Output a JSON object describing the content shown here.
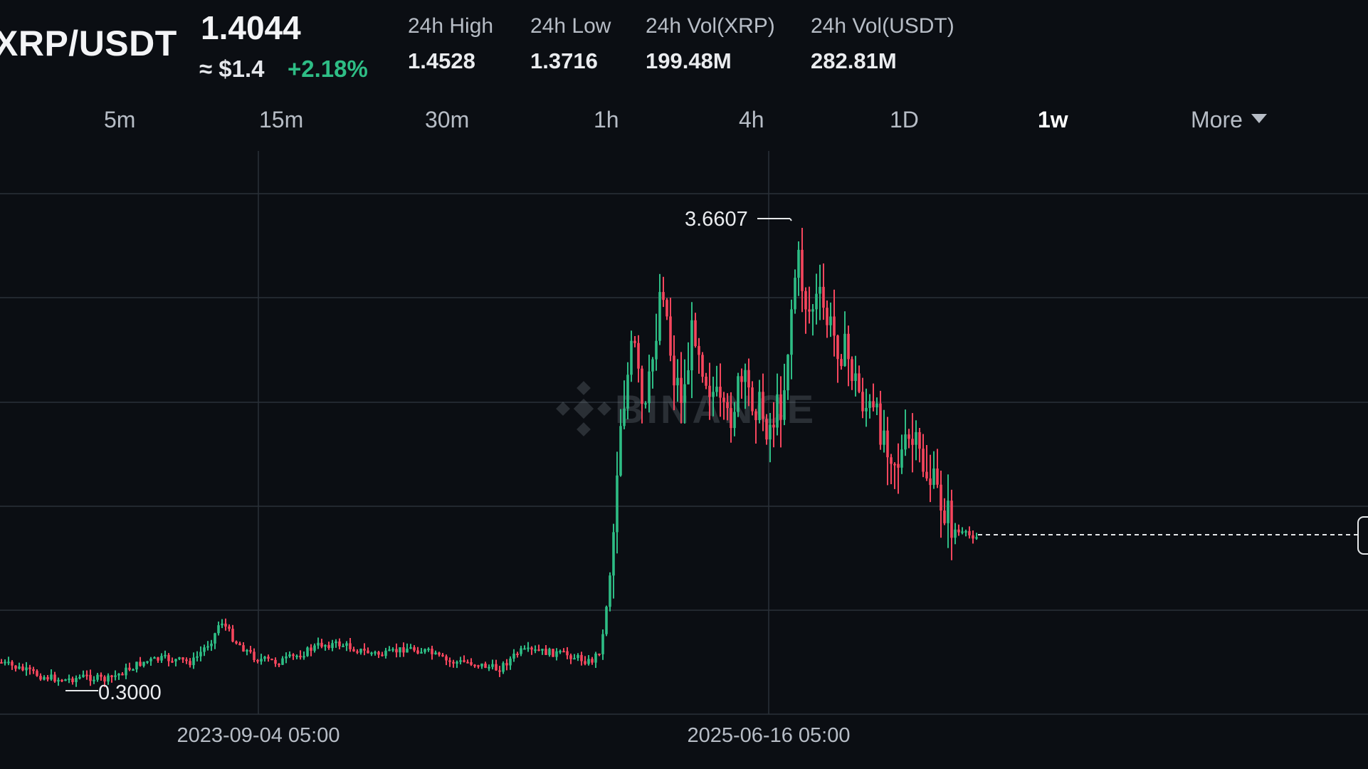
{
  "header": {
    "pair": "XRP/USDT",
    "last_price": "1.4044",
    "approx_usd": "≈ $1.4",
    "change_pct": "+2.18%",
    "stats": [
      {
        "label": "24h High",
        "value": "1.4528"
      },
      {
        "label": "24h Low",
        "value": "1.3716"
      },
      {
        "label": "24h Vol(XRP)",
        "value": "199.48M"
      },
      {
        "label": "24h Vol(USDT)",
        "value": "282.81M"
      }
    ]
  },
  "tabs": {
    "items": [
      "5m",
      "15m",
      "30m",
      "1h",
      "4h",
      "1D",
      "1w"
    ],
    "active": "1w",
    "more_label": "More",
    "more_icon": "caret-down-icon"
  },
  "chart": {
    "watermark": "BINANCE",
    "watermark_icon": "binance-logo-icon",
    "high_marker": "3.6607",
    "low_marker": "0.3000",
    "x_labels": [
      "2023-09-04 05:00",
      "2025-06-16 05:00"
    ],
    "colors": {
      "up": "#2ebd85",
      "down": "#f6465d",
      "grid": "#2b3139",
      "background": "#0b0e13"
    }
  }
}
